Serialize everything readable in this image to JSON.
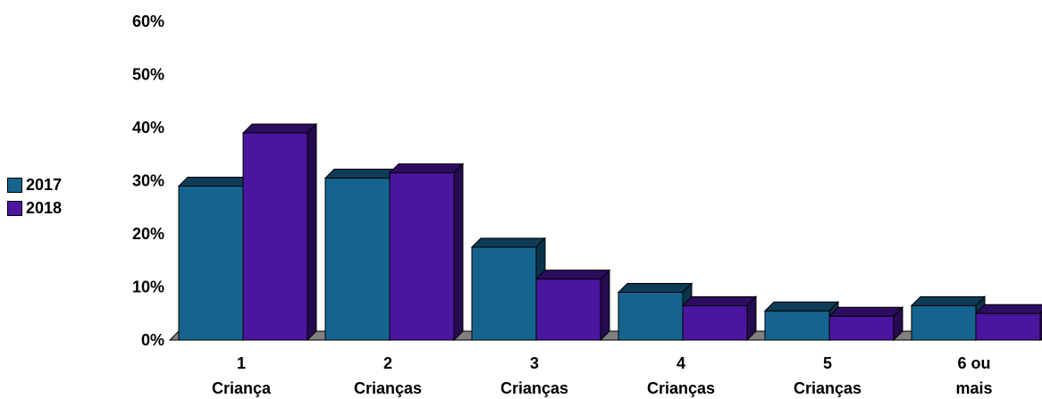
{
  "chart_data": {
    "type": "bar",
    "categories": [
      [
        "1",
        "Criança"
      ],
      [
        "2",
        "Crianças"
      ],
      [
        "3",
        "Crianças"
      ],
      [
        "4",
        "Crianças"
      ],
      [
        "5",
        "Crianças"
      ],
      [
        "6 ou",
        "mais"
      ]
    ],
    "series": [
      {
        "name": "2017",
        "color": "#15648f",
        "values": [
          29,
          30.5,
          17.5,
          9,
          5.5,
          6.5
        ]
      },
      {
        "name": "2018",
        "color": "#4a16a0",
        "values": [
          39,
          31.5,
          11.5,
          6.5,
          4.5,
          5
        ]
      }
    ],
    "y_ticks": [
      "0%",
      "10%",
      "20%",
      "30%",
      "40%",
      "50%",
      "60%"
    ],
    "ylim": [
      0,
      60
    ],
    "legend_position": "left",
    "three_d": true
  }
}
